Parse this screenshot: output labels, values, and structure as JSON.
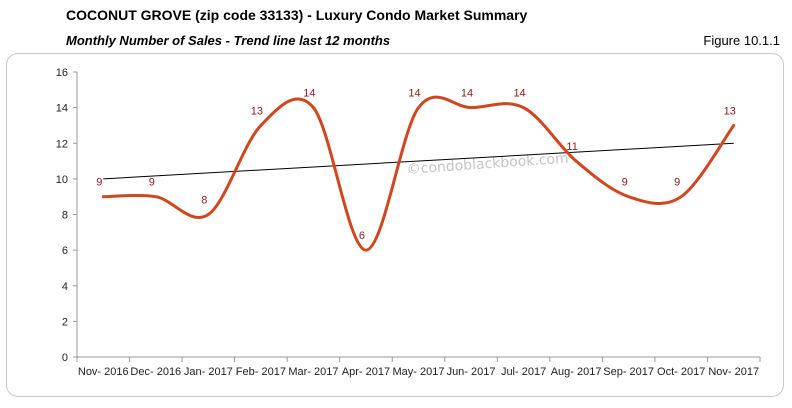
{
  "header": {
    "title": "COCONUT GROVE (zip code 33133) - Luxury Condo Market Summary",
    "subtitle": "Monthly Number of Sales - Trend line last 12 months",
    "figure": "Figure 10.1.1"
  },
  "watermark": "©condoblackbook.com",
  "colors": {
    "series": "#d2461f",
    "trend": "#000000",
    "axis": "#999999"
  },
  "chart_data": {
    "type": "line",
    "categories": [
      "Nov- 2016",
      "Dec- 2016",
      "Jan- 2017",
      "Feb- 2017",
      "Mar- 2017",
      "Apr- 2017",
      "May- 2017",
      "Jun- 2017",
      "Jul- 2017",
      "Aug- 2017",
      "Sep- 2017",
      "Oct- 2017",
      "Nov- 2017"
    ],
    "series": [
      {
        "values": [
          9,
          9,
          8,
          13,
          14,
          6,
          14,
          14,
          14,
          11,
          9,
          9,
          13
        ],
        "smooth": true
      }
    ],
    "trendline": {
      "start": 10,
      "end": 12
    },
    "ylim": [
      0,
      16
    ],
    "yticks": [
      0,
      2,
      4,
      6,
      8,
      10,
      12,
      14,
      16
    ],
    "grid": false,
    "legend": "none"
  }
}
